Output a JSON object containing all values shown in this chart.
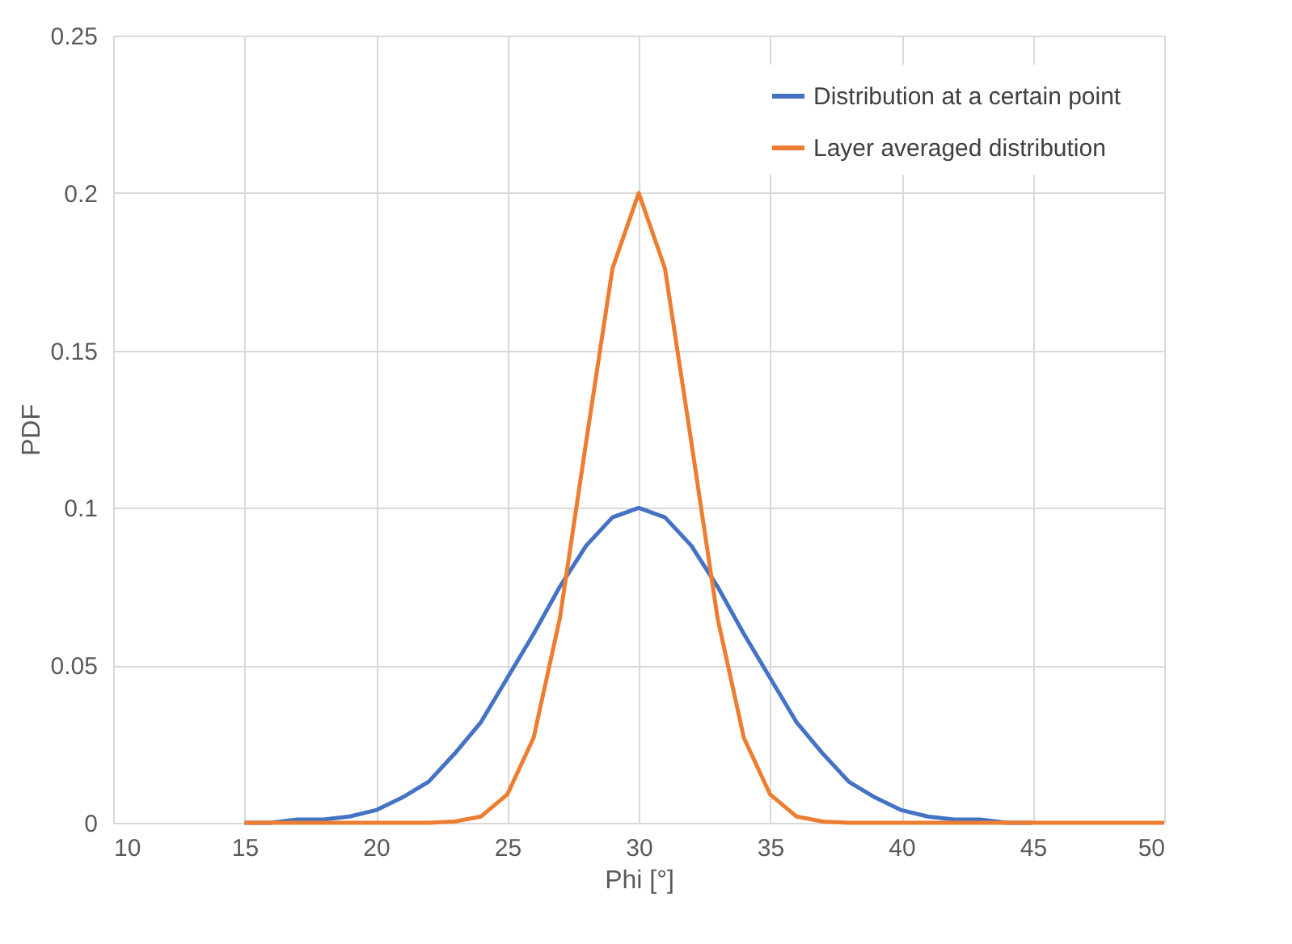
{
  "chart_data": {
    "type": "line",
    "xlabel": "Phi [°]",
    "ylabel": "PDF",
    "x": [
      15,
      16,
      17,
      18,
      19,
      20,
      21,
      22,
      23,
      24,
      25,
      26,
      27,
      28,
      29,
      30,
      31,
      32,
      33,
      34,
      35,
      36,
      37,
      38,
      39,
      40,
      41,
      42,
      43,
      44,
      45,
      46,
      47,
      48,
      49,
      50
    ],
    "series": [
      {
        "name": "Distribution at a certain point",
        "color": "#4472c4",
        "values": [
          0,
          0,
          0.001,
          0.001,
          0.002,
          0.004,
          0.008,
          0.013,
          0.022,
          0.032,
          0.046,
          0.06,
          0.075,
          0.088,
          0.097,
          0.1,
          0.097,
          0.088,
          0.075,
          0.06,
          0.046,
          0.032,
          0.022,
          0.013,
          0.008,
          0.004,
          0.002,
          0.001,
          0.001,
          0,
          0,
          null,
          null,
          null,
          null,
          null
        ]
      },
      {
        "name": "Layer averaged distribution",
        "color": "#ed7d31",
        "values": [
          0,
          0,
          0,
          0,
          0,
          0,
          0,
          0,
          0.0004,
          0.002,
          0.009,
          0.027,
          0.065,
          0.121,
          0.176,
          0.2,
          0.176,
          0.121,
          0.065,
          0.027,
          0.009,
          0.002,
          0.0004,
          0,
          0,
          0,
          0,
          0,
          0,
          0,
          0,
          0,
          0,
          0,
          0,
          0
        ]
      }
    ],
    "xlim": [
      10,
      50
    ],
    "xticks": [
      10,
      15,
      20,
      25,
      30,
      35,
      40,
      45,
      50
    ],
    "ylim": [
      0,
      0.25
    ],
    "yticks": [
      0,
      0.05,
      0.1,
      0.15,
      0.2,
      0.25
    ],
    "grid": true,
    "legend": "top right",
    "line_style": "solid",
    "marker": "none"
  }
}
